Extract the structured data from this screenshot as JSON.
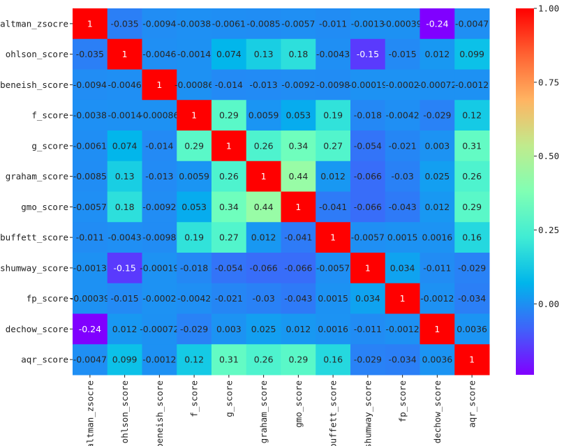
{
  "chart_data": {
    "type": "heatmap",
    "title": "",
    "xlabel": "",
    "ylabel": "",
    "colormap": "rainbow",
    "vmin": -0.24,
    "vmax": 1.0,
    "rows": [
      "altman_zsocre",
      "ohlson_score",
      "beneish_score",
      "f_score",
      "g_score",
      "graham_score",
      "gmo_score",
      "buffett_score",
      "shumway_score",
      "fp_score",
      "dechow_score",
      "aqr_score"
    ],
    "cols": [
      "altman_zsocre",
      "ohlson_score",
      "beneish_score",
      "f_score",
      "g_score",
      "graham_score",
      "gmo_score",
      "buffett_score",
      "shumway_score",
      "fp_score",
      "dechow_score",
      "aqr_score"
    ],
    "values": [
      [
        1,
        -0.035,
        -0.0094,
        -0.0038,
        -0.0061,
        -0.0085,
        -0.0057,
        -0.011,
        -0.0013,
        -0.00039,
        -0.24,
        -0.0047
      ],
      [
        -0.035,
        1,
        -0.0046,
        -0.0014,
        0.074,
        0.13,
        0.18,
        -0.0043,
        -0.15,
        -0.015,
        0.012,
        0.099
      ],
      [
        -0.0094,
        -0.0046,
        1,
        -0.00086,
        -0.014,
        -0.013,
        -0.0092,
        -0.0098,
        -0.00019,
        -0.0002,
        -0.00072,
        -0.0012
      ],
      [
        -0.0038,
        -0.0014,
        -0.00086,
        1,
        0.29,
        0.0059,
        0.053,
        0.19,
        -0.018,
        -0.0042,
        -0.029,
        0.12
      ],
      [
        -0.0061,
        0.074,
        -0.014,
        0.29,
        1,
        0.26,
        0.34,
        0.27,
        -0.054,
        -0.021,
        0.003,
        0.31
      ],
      [
        -0.0085,
        0.13,
        -0.013,
        0.0059,
        0.26,
        1,
        0.44,
        0.012,
        -0.066,
        -0.03,
        0.025,
        0.26
      ],
      [
        -0.0057,
        0.18,
        -0.0092,
        0.053,
        0.34,
        0.44,
        1,
        -0.041,
        -0.066,
        -0.043,
        0.012,
        0.29
      ],
      [
        -0.011,
        -0.0043,
        -0.0098,
        0.19,
        0.27,
        0.012,
        -0.041,
        1,
        -0.0057,
        0.0015,
        0.0016,
        0.16
      ],
      [
        -0.0013,
        -0.15,
        -0.00019,
        -0.018,
        -0.054,
        -0.066,
        -0.066,
        -0.0057,
        1,
        0.034,
        -0.011,
        -0.029
      ],
      [
        -0.00039,
        -0.015,
        -0.0002,
        -0.0042,
        -0.021,
        -0.03,
        -0.043,
        0.0015,
        0.034,
        1,
        -0.0012,
        -0.034
      ],
      [
        -0.24,
        0.012,
        -0.00072,
        -0.029,
        0.003,
        0.025,
        0.012,
        0.0016,
        -0.011,
        -0.0012,
        1,
        0.0036
      ],
      [
        -0.0047,
        0.099,
        -0.0012,
        0.12,
        0.31,
        0.26,
        0.29,
        0.16,
        -0.029,
        -0.034,
        0.0036,
        1
      ]
    ],
    "annotations": [
      [
        "1",
        "-0.035",
        "-0.0094",
        "-0.0038",
        "-0.0061",
        "-0.0085",
        "-0.0057",
        "-0.011",
        "-0.0013",
        "-0.00039",
        "-0.24",
        "-0.0047"
      ],
      [
        "-0.035",
        "1",
        "-0.0046",
        "-0.0014",
        "0.074",
        "0.13",
        "0.18",
        "-0.0043",
        "-0.15",
        "-0.015",
        "0.012",
        "0.099"
      ],
      [
        "-0.0094",
        "-0.0046",
        "1",
        "-0.00086",
        "-0.014",
        "-0.013",
        "-0.0092",
        "-0.0098",
        "-0.00019",
        "-0.0002",
        "-0.00072",
        "-0.0012"
      ],
      [
        "-0.0038",
        "-0.0014",
        "-0.00086",
        "1",
        "0.29",
        "0.0059",
        "0.053",
        "0.19",
        "-0.018",
        "-0.0042",
        "-0.029",
        "0.12"
      ],
      [
        "-0.0061",
        "0.074",
        "-0.014",
        "0.29",
        "1",
        "0.26",
        "0.34",
        "0.27",
        "-0.054",
        "-0.021",
        "0.003",
        "0.31"
      ],
      [
        "-0.0085",
        "0.13",
        "-0.013",
        "0.0059",
        "0.26",
        "1",
        "0.44",
        "0.012",
        "-0.066",
        "-0.03",
        "0.025",
        "0.26"
      ],
      [
        "-0.0057",
        "0.18",
        "-0.0092",
        "0.053",
        "0.34",
        "0.44",
        "1",
        "-0.041",
        "-0.066",
        "-0.043",
        "0.012",
        "0.29"
      ],
      [
        "-0.011",
        "-0.0043",
        "-0.0098",
        "0.19",
        "0.27",
        "0.012",
        "-0.041",
        "1",
        "-0.0057",
        "0.0015",
        "0.0016",
        "0.16"
      ],
      [
        "-0.0013",
        "-0.15",
        "-0.00019",
        "-0.018",
        "-0.054",
        "-0.066",
        "-0.066",
        "-0.0057",
        "1",
        "0.034",
        "-0.011",
        "-0.029"
      ],
      [
        "-0.00039",
        "-0.015",
        "-0.0002",
        "-0.0042",
        "-0.021",
        "-0.03",
        "-0.043",
        "0.0015",
        "0.034",
        "1",
        "-0.0012",
        "-0.034"
      ],
      [
        "-0.24",
        "0.012",
        "-0.00072",
        "-0.029",
        "0.003",
        "0.025",
        "0.012",
        "0.0016",
        "-0.011",
        "-0.0012",
        "1",
        "0.0036"
      ],
      [
        "-0.0047",
        "0.099",
        "-0.0012",
        "0.12",
        "0.31",
        "0.26",
        "0.29",
        "0.16",
        "-0.029",
        "-0.034",
        "0.0036",
        "1"
      ]
    ],
    "colorbar": {
      "ticks": [
        0.0,
        0.25,
        0.5,
        0.75,
        1.0
      ],
      "tick_labels": [
        "0.00",
        "0.25",
        "0.50",
        "0.75",
        "1.00"
      ]
    }
  }
}
